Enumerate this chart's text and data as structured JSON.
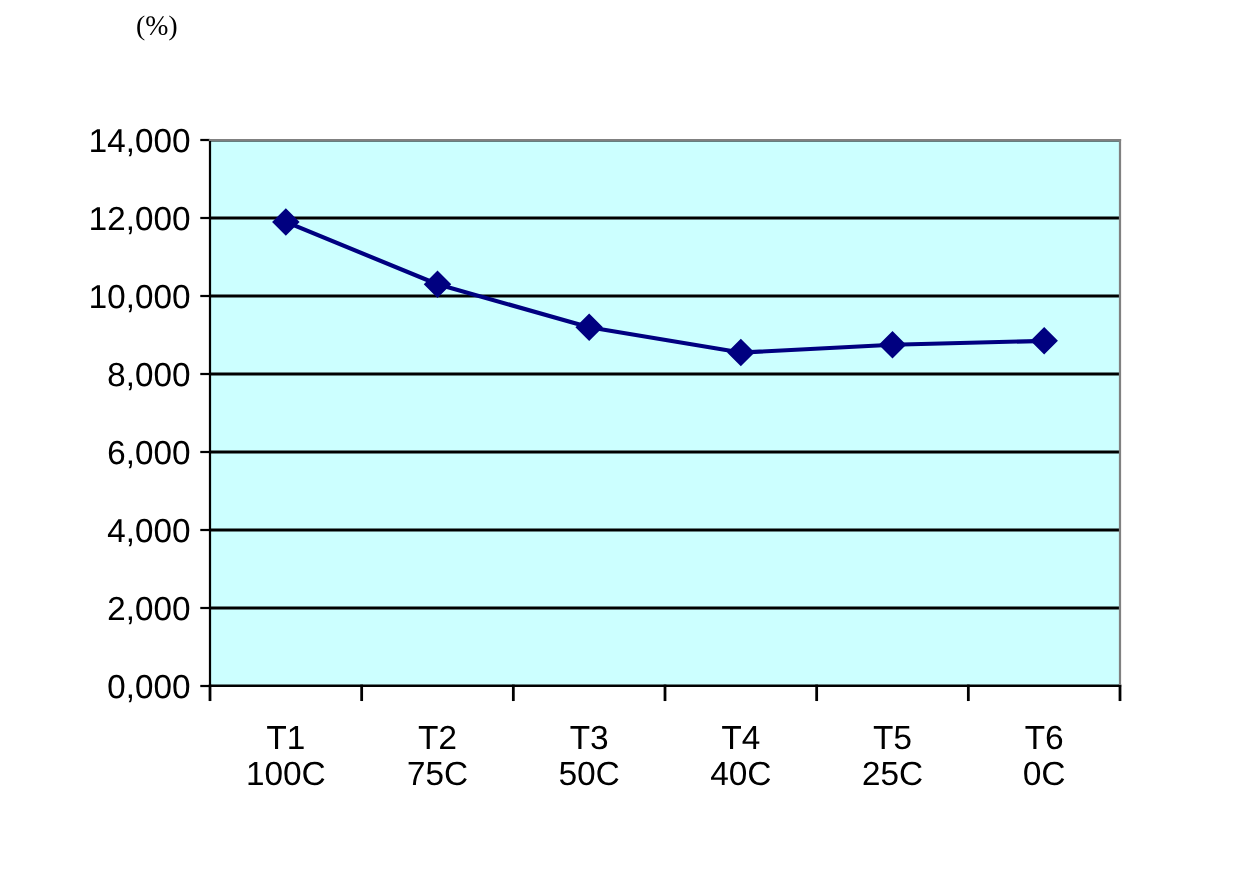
{
  "chart_data": {
    "type": "line",
    "ylabel": "(%)",
    "categories": [
      "T1\n100C",
      "T2\n75C",
      "T3\n50C",
      "T4\n40C",
      "T5\n25C",
      "T6\n0C"
    ],
    "series": [
      {
        "color": "#000080",
        "values": [
          11900,
          10300,
          9200,
          8550,
          8750,
          8850
        ]
      }
    ],
    "ylim": [
      0,
      14000
    ],
    "yticks": [
      {
        "value": 0,
        "label": "0,000"
      },
      {
        "value": 2000,
        "label": "2,000"
      },
      {
        "value": 4000,
        "label": "4,000"
      },
      {
        "value": 6000,
        "label": "6,000"
      },
      {
        "value": 8000,
        "label": "8,000"
      },
      {
        "value": 10000,
        "label": "10,000"
      },
      {
        "value": 12000,
        "label": "12,000"
      },
      {
        "value": 14000,
        "label": "14,000"
      }
    ],
    "grid": "y",
    "marker": "diamond",
    "line_style": "solid",
    "legend": false
  }
}
